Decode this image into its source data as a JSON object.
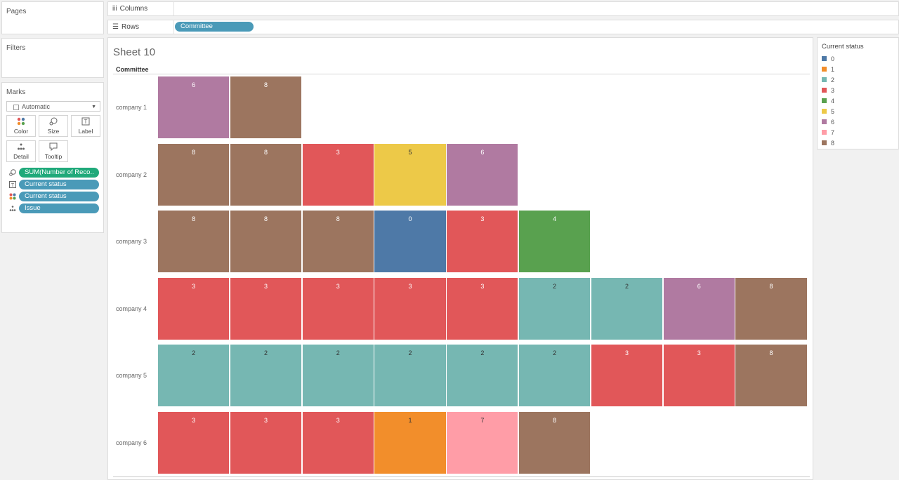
{
  "shelves": {
    "pages_title": "Pages",
    "filters_title": "Filters",
    "columns_label": "Columns",
    "rows_label": "Rows",
    "rows_pill": "Committee"
  },
  "marks": {
    "title": "Marks",
    "type": "Automatic",
    "buttons": [
      "Color",
      "Size",
      "Label",
      "Detail",
      "Tooltip"
    ],
    "fields": [
      {
        "label": "SUM(Number of Reco..",
        "type": "size"
      },
      {
        "label": "Current status",
        "type": "label"
      },
      {
        "label": "Current status",
        "type": "color"
      },
      {
        "label": "Issue",
        "type": "detail"
      }
    ]
  },
  "sheet": {
    "title": "Sheet 10",
    "row_header": "Committee"
  },
  "legend": {
    "title": "Current status",
    "items": [
      {
        "label": "0",
        "color": "#4e79a7"
      },
      {
        "label": "1",
        "color": "#f28e2b"
      },
      {
        "label": "2",
        "color": "#76b7b2"
      },
      {
        "label": "3",
        "color": "#e15759"
      },
      {
        "label": "4",
        "color": "#59a14f"
      },
      {
        "label": "5",
        "color": "#edc948"
      },
      {
        "label": "6",
        "color": "#b07aa1"
      },
      {
        "label": "7",
        "color": "#ff9da7"
      },
      {
        "label": "8",
        "color": "#9c755f"
      }
    ]
  },
  "chart_data": {
    "type": "heatmap",
    "title": "Sheet 10",
    "row_field": "Committee",
    "color_field": "Current status",
    "rows": [
      {
        "label": "company 1",
        "statuses": [
          "6",
          "8"
        ]
      },
      {
        "label": "company 2",
        "statuses": [
          "8",
          "8",
          "3",
          "5",
          "6"
        ]
      },
      {
        "label": "company 3",
        "statuses": [
          "8",
          "8",
          "8",
          "0",
          "3",
          "4"
        ]
      },
      {
        "label": "company 4",
        "statuses": [
          "3",
          "3",
          "3",
          "3",
          "3",
          "2",
          "2",
          "6",
          "8"
        ]
      },
      {
        "label": "company 5",
        "statuses": [
          "2",
          "2",
          "2",
          "2",
          "2",
          "2",
          "3",
          "3",
          "8"
        ]
      },
      {
        "label": "company 6",
        "statuses": [
          "3",
          "3",
          "3",
          "1",
          "7",
          "8"
        ]
      }
    ]
  }
}
